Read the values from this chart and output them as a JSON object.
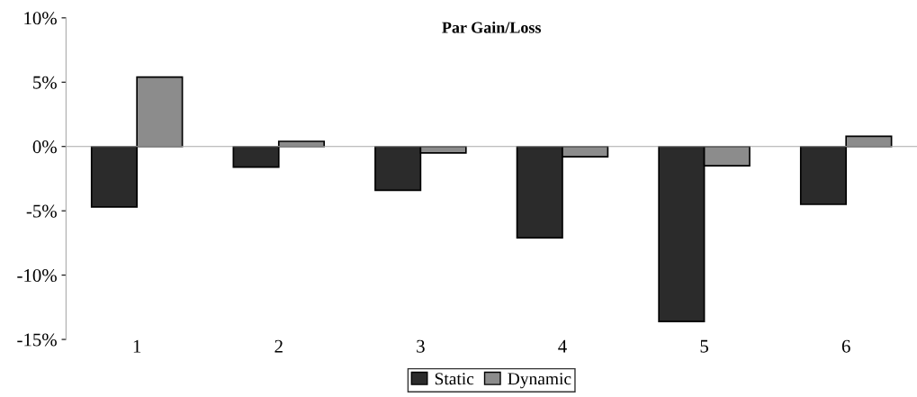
{
  "chart_data": {
    "type": "bar",
    "title": "Par Gain/Loss",
    "categories": [
      "1",
      "2",
      "3",
      "4",
      "5",
      "6"
    ],
    "series": [
      {
        "name": "Static",
        "color": "#2b2b2b",
        "values": [
          -4.7,
          -1.6,
          -3.4,
          -7.1,
          -13.6,
          -4.5
        ]
      },
      {
        "name": "Dynamic",
        "color": "#8c8c8c",
        "values": [
          5.4,
          0.4,
          -0.5,
          -0.8,
          -1.5,
          0.8
        ]
      }
    ],
    "ylim": [
      -15,
      10
    ],
    "yticks": [
      {
        "value": -15,
        "label": "-15%"
      },
      {
        "value": -10,
        "label": "-10%"
      },
      {
        "value": -5,
        "label": "-5%"
      },
      {
        "value": 0,
        "label": "0%"
      },
      {
        "value": 5,
        "label": "5%"
      },
      {
        "value": 10,
        "label": "10%"
      }
    ],
    "legend": "bottom"
  }
}
